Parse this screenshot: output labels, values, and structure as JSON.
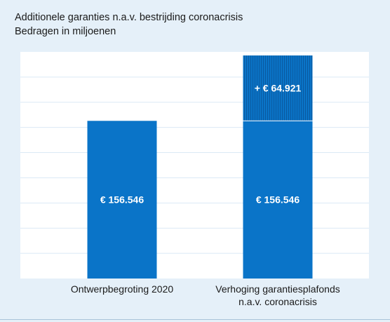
{
  "chart_data": {
    "type": "bar",
    "title": "Additionele garanties n.a.v. bestrijding coronacrisis",
    "subtitle": "Bedragen in miljoenen",
    "categories": [
      "Ontwerpbegroting 2020",
      "Verhoging garantiesplafonds n.a.v. coronacrisis"
    ],
    "series": [
      {
        "values": [
          156546,
          156546
        ],
        "labels": [
          "€ 156.546",
          "€ 156.546"
        ]
      },
      {
        "values": [
          0,
          64921
        ],
        "labels": [
          "",
          "+ € 64.921"
        ]
      }
    ],
    "stacked": true,
    "ylim": [
      0,
      225000
    ],
    "grid": true,
    "legend": "none",
    "colors": {
      "base": "#0a74c8",
      "increase": "#0a74c8",
      "increase_stripe": "#0a5aa0",
      "plot_bg": "#ffffff",
      "grid": "#dbe9f5"
    }
  }
}
